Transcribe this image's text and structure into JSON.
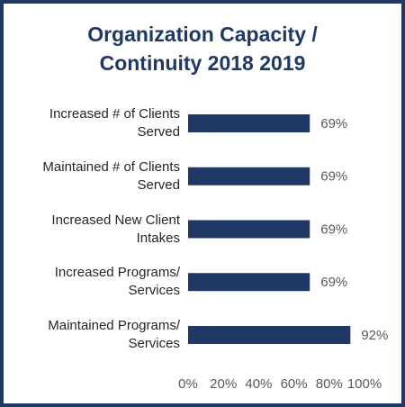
{
  "chart_data": {
    "type": "bar",
    "orientation": "horizontal",
    "title": "Organization Capacity / Continuity 2018 2019",
    "categories": [
      "Increased # of Clients Served",
      "Maintained # of Clients Served",
      "Increased New Client Intakes",
      "Increased Programs/ Services",
      "Maintained Programs/ Services"
    ],
    "values": [
      69,
      69,
      69,
      69,
      92
    ],
    "value_labels": [
      "69%",
      "69%",
      "69%",
      "69%",
      "92%"
    ],
    "color": "#203864",
    "xlim": [
      0,
      100
    ],
    "xticks": [
      {
        "value": 0,
        "label": "0%"
      },
      {
        "value": 20,
        "label": "20%"
      },
      {
        "value": 40,
        "label": "40%"
      },
      {
        "value": 60,
        "label": "60%"
      },
      {
        "value": 80,
        "label": "80%"
      },
      {
        "value": 100,
        "label": "100%"
      }
    ],
    "grid": false
  }
}
